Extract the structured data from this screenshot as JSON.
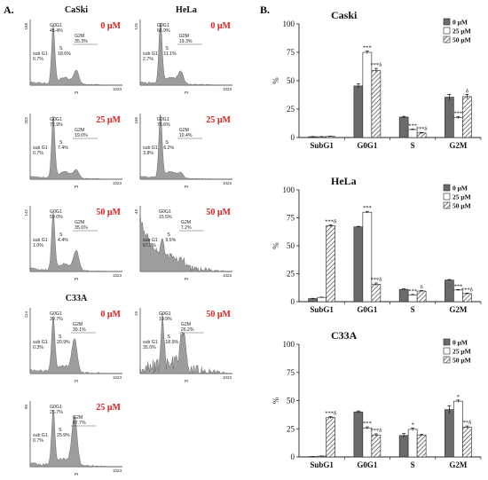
{
  "panel_a_label": "A.",
  "panel_b_label": "B.",
  "flow": {
    "axis_label": "PI",
    "axis_max": "1023",
    "column_titles": [
      "CaSki",
      "HeLa"
    ],
    "row_title_c33a": "C33A",
    "units": "μM",
    "panels": [
      {
        "cell": "CaSki",
        "conc": "0 μM",
        "ymax": "168",
        "peak1": 0.25,
        "h1": 0.85,
        "peak2": 0.5,
        "h2": 0.2,
        "noise": 0.03,
        "labels": {
          "subg1": "sub G1",
          "subg1v": "0.7%",
          "g0g1": "G0G1",
          "g0g1v": "45.4%",
          "s": "S",
          "sv": "18.6%",
          "g2m": "G2M",
          "g2mv": "35.3%"
        }
      },
      {
        "cell": "HeLa",
        "conc": "0 μM",
        "ymax": "125",
        "peak1": 0.22,
        "h1": 0.92,
        "peak2": 0.44,
        "h2": 0.18,
        "noise": 0.03,
        "labels": {
          "subg1": "sub G1",
          "subg1v": "2.7%",
          "g0g1": "G0G1",
          "g0g1v": "66.9%",
          "s": "S",
          "sv": "11.1%",
          "g2m": "G2M",
          "g2mv": "19.3%"
        }
      },
      {
        "cell": "CaSki",
        "conc": "25 μM",
        "ymax": "252",
        "peak1": 0.25,
        "h1": 0.92,
        "peak2": 0.5,
        "h2": 0.12,
        "noise": 0.02,
        "labels": {
          "subg1": "sub G1",
          "subg1v": "0.7%",
          "g0g1": "G0G1",
          "g0g1v": "72.9%",
          "s": "S",
          "sv": "7.4%",
          "g2m": "G2M",
          "g2mv": "19.0%"
        }
      },
      {
        "cell": "HeLa",
        "conc": "25 μM",
        "ymax": "166",
        "peak1": 0.22,
        "h1": 0.95,
        "peak2": 0.44,
        "h2": 0.07,
        "noise": 0.02,
        "labels": {
          "subg1": "sub G1",
          "subg1v": "3.8%",
          "g0g1": "G0G1",
          "g0g1v": "79.6%",
          "s": "S",
          "sv": "6.2%",
          "g2m": "G2M",
          "g2mv": "10.4%"
        }
      },
      {
        "cell": "CaSki",
        "conc": "50 μM",
        "ymax": "147",
        "peak1": 0.25,
        "h1": 0.85,
        "peak2": 0.5,
        "h2": 0.3,
        "noise": 0.03,
        "labels": {
          "subg1": "sub G1",
          "subg1v": "1.0%",
          "g0g1": "G0G1",
          "g0g1v": "59.0%",
          "s": "S",
          "sv": "4.4%",
          "g2m": "G2M",
          "g2mv": "35.6%"
        }
      },
      {
        "cell": "HeLa",
        "conc": "50 μM",
        "ymax": "49",
        "peak1": 0.24,
        "h1": 0.25,
        "peak2": 0.46,
        "h2": 0.1,
        "noise": 0.12,
        "subg1_high": true,
        "labels": {
          "subg1": "sub G1",
          "subg1v": "67.8%",
          "g0g1": "G0G1",
          "g0g1v": "15.5%",
          "s": "S",
          "sv": "9.5%",
          "g2m": "G2M",
          "g2mv": "7.2%"
        }
      },
      {
        "cell": "C33A",
        "conc": "0 μM",
        "ymax": "114",
        "peak1": 0.25,
        "h1": 0.82,
        "peak2": 0.48,
        "h2": 0.5,
        "noise": 0.05,
        "labels": {
          "subg1": "sub G1",
          "subg1v": "0.3%",
          "g0g1": "G0G1",
          "g0g1v": "39.7%",
          "s": "S",
          "sv": "20.9%",
          "g2m": "G2M",
          "g2mv": "39.1%"
        }
      },
      {
        "cell": "C33A",
        "conc": "50 μM",
        "ymax": "19",
        "peak1": 0.24,
        "h1": 0.75,
        "peak2": 0.46,
        "h2": 0.6,
        "noise": 0.3,
        "labels": {
          "subg1": "sub G1",
          "subg1v": "35.0%",
          "g0g1": "G0G1",
          "g0g1v": "19.9%",
          "s": "S",
          "sv": "18.9%",
          "g2m": "G2M",
          "g2mv": "26.2%"
        }
      },
      {
        "cell": "C33A",
        "conc": "25 μM",
        "ymax": "90",
        "peak1": 0.25,
        "h1": 0.82,
        "peak2": 0.48,
        "h2": 0.75,
        "noise": 0.05,
        "labels": {
          "subg1": "sub G1",
          "subg1v": "0.7%",
          "g0g1": "G0G1",
          "g0g1v": "25.7%",
          "s": "S",
          "sv": "25.9%",
          "g2m": "G2M",
          "g2mv": "47.7%"
        }
      }
    ]
  },
  "chart_data": [
    {
      "type": "bar",
      "title": "Caski",
      "ylabel": "%",
      "ylim": [
        0,
        100
      ],
      "yticks": [
        0,
        25,
        50,
        75,
        100
      ],
      "categories": [
        "SubG1",
        "G0G1",
        "S",
        "G2M"
      ],
      "legend_position": "top-right",
      "series": [
        {
          "name": "0  μM",
          "values": [
            0.7,
            45.4,
            18,
            35.5
          ],
          "errors": [
            0.2,
            2,
            0.6,
            2.5
          ]
        },
        {
          "name": "25  μM",
          "values": [
            0.7,
            75,
            7,
            17.5
          ],
          "errors": [
            0.2,
            1.2,
            0.5,
            1
          ]
        },
        {
          "name": "50  μM",
          "values": [
            1,
            59,
            4,
            36
          ],
          "errors": [
            0.2,
            1.8,
            0.5,
            2
          ]
        }
      ],
      "annotations": [
        {
          "category": 1,
          "series": 1,
          "text": "***"
        },
        {
          "category": 1,
          "series": 2,
          "text": "***δ"
        },
        {
          "category": 2,
          "series": 1,
          "text": "***"
        },
        {
          "category": 2,
          "series": 2,
          "text": "***δ"
        },
        {
          "category": 3,
          "series": 1,
          "text": "***"
        },
        {
          "category": 3,
          "series": 2,
          "text": "δ"
        }
      ]
    },
    {
      "type": "bar",
      "title": "HeLa",
      "ylabel": "%",
      "ylim": [
        0,
        100
      ],
      "yticks": [
        0,
        25,
        50,
        75,
        100
      ],
      "categories": [
        "SubG1",
        "G0G1",
        "S",
        "G2M"
      ],
      "legend_position": "top-right",
      "series": [
        {
          "name": "0  μM",
          "values": [
            2.7,
            66.9,
            11,
            19.3
          ],
          "errors": [
            0.3,
            0.5,
            0.5,
            0.5
          ]
        },
        {
          "name": "25  μM",
          "values": [
            3.8,
            80,
            6,
            10.4
          ],
          "errors": [
            0.3,
            0.8,
            0.4,
            0.5
          ]
        },
        {
          "name": "50  μM",
          "values": [
            68,
            15.5,
            9.5,
            7.2
          ],
          "errors": [
            0.8,
            1.2,
            0.5,
            0.5
          ]
        }
      ],
      "annotations": [
        {
          "category": 0,
          "series": 2,
          "text": "***δ"
        },
        {
          "category": 1,
          "series": 1,
          "text": "***"
        },
        {
          "category": 1,
          "series": 2,
          "text": "***δ"
        },
        {
          "category": 2,
          "series": 1,
          "text": "***"
        },
        {
          "category": 2,
          "series": 2,
          "text": "δ"
        },
        {
          "category": 3,
          "series": 1,
          "text": "***"
        },
        {
          "category": 3,
          "series": 2,
          "text": "***δ"
        }
      ]
    },
    {
      "type": "bar",
      "title": "C33A",
      "ylabel": "%",
      "ylim": [
        0,
        100
      ],
      "yticks": [
        0,
        25,
        50,
        75,
        100
      ],
      "categories": [
        "SubG1",
        "G0G1",
        "S",
        "G2M"
      ],
      "legend_position": "top-right",
      "series": [
        {
          "name": "0  μM",
          "values": [
            0.3,
            40,
            19,
            42
          ],
          "errors": [
            0.1,
            0.8,
            1.8,
            3.5
          ]
        },
        {
          "name": "25  μM",
          "values": [
            0.7,
            25.7,
            24.5,
            49.5
          ],
          "errors": [
            0.2,
            1,
            1.2,
            1
          ]
        },
        {
          "name": "50  μM",
          "values": [
            35,
            19.5,
            19.5,
            26.5
          ],
          "errors": [
            0.8,
            1,
            0.5,
            1
          ]
        }
      ],
      "annotations": [
        {
          "category": 0,
          "series": 2,
          "text": "***δ"
        },
        {
          "category": 1,
          "series": 1,
          "text": "***"
        },
        {
          "category": 1,
          "series": 2,
          "text": "***δ"
        },
        {
          "category": 2,
          "series": 1,
          "text": "*"
        },
        {
          "category": 3,
          "series": 1,
          "text": "*"
        },
        {
          "category": 3,
          "series": 2,
          "text": "**δ"
        }
      ]
    }
  ]
}
